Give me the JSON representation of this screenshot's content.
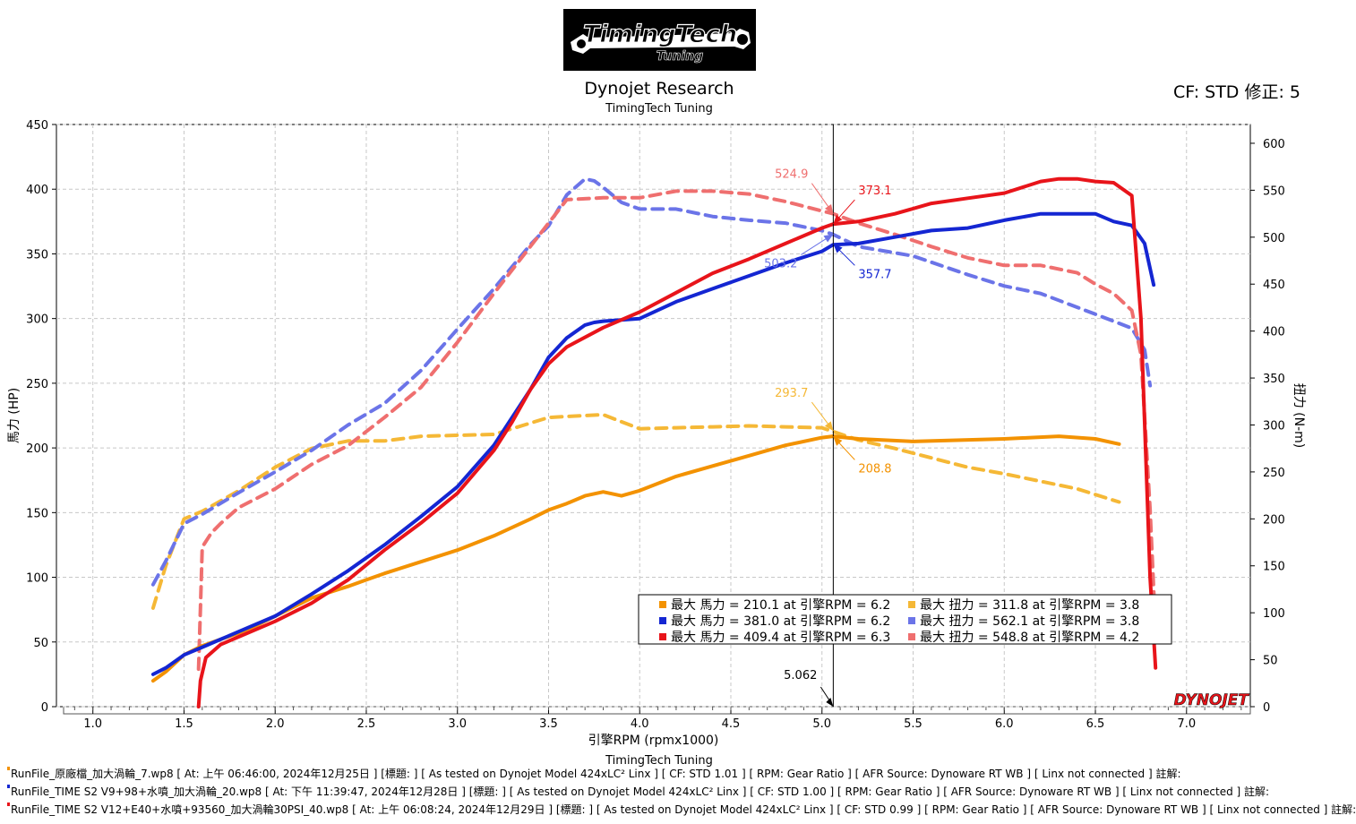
{
  "logo": {
    "line1": "TimingTech",
    "line2": "Tuning"
  },
  "header": {
    "title": "Dynojet Research",
    "subtitle": "TimingTech Tuning",
    "cf": "CF: STD 修正: 5"
  },
  "footer": {
    "subtitle": "TimingTech Tuning"
  },
  "colors": {
    "orange": "#f39200",
    "blue": "#1426d2",
    "red": "#e8141a",
    "orange_tq": "#f5b836",
    "blue_tq": "#6b74e8",
    "red_tq": "#ef6f6f"
  },
  "chart_data": {
    "type": "line",
    "xlabel": "引擎RPM (rpmx1000)",
    "ylabel_left": "馬力 (HP)",
    "ylabel_right": "扭力 (N-m)",
    "xlim": [
      0.8,
      7.35
    ],
    "ylim_left": [
      0,
      450
    ],
    "ylim_right": [
      0,
      620
    ],
    "x_ticks": [
      "1.0",
      "1.5",
      "2.0",
      "2.5",
      "3.0",
      "3.5",
      "4.0",
      "4.5",
      "5.0",
      "5.5",
      "6.0",
      "6.5",
      "7.0"
    ],
    "y_ticks_left": [
      "0",
      "50",
      "100",
      "150",
      "200",
      "250",
      "300",
      "350",
      "400",
      "450"
    ],
    "y_ticks_right": [
      "0",
      "50",
      "100",
      "150",
      "200",
      "250",
      "300",
      "350",
      "400",
      "450",
      "500",
      "550",
      "600"
    ],
    "cursor": {
      "x": 5.062,
      "label": "5.062"
    },
    "series": [
      {
        "name": "orange_hp",
        "axis": "left",
        "style": "solid",
        "color": "#f39200",
        "x": [
          1.33,
          1.4,
          1.5,
          1.6,
          1.7,
          1.8,
          1.9,
          2.0,
          2.2,
          2.4,
          2.5,
          2.6,
          2.8,
          3.0,
          3.2,
          3.4,
          3.5,
          3.6,
          3.7,
          3.8,
          3.9,
          4.0,
          4.2,
          4.4,
          4.6,
          4.8,
          5.0,
          5.06,
          5.2,
          5.5,
          6.0,
          6.3,
          6.5,
          6.63
        ],
        "y": [
          20,
          27,
          40,
          47,
          52,
          57,
          63,
          70,
          84,
          93,
          98,
          103,
          112,
          121,
          132,
          145,
          152,
          157,
          163,
          166,
          163,
          167,
          178,
          186,
          194,
          202,
          208,
          209,
          207,
          205,
          207,
          209,
          207,
          203
        ]
      },
      {
        "name": "blue_hp",
        "axis": "left",
        "style": "solid",
        "color": "#1426d2",
        "x": [
          1.33,
          1.4,
          1.5,
          1.6,
          1.7,
          1.8,
          2.0,
          2.2,
          2.4,
          2.6,
          2.8,
          3.0,
          3.2,
          3.4,
          3.5,
          3.6,
          3.7,
          3.75,
          3.8,
          4.0,
          4.2,
          4.4,
          4.6,
          4.8,
          5.0,
          5.06,
          5.2,
          5.4,
          5.6,
          5.8,
          6.0,
          6.2,
          6.5,
          6.6,
          6.7,
          6.77,
          6.82
        ],
        "y": [
          25,
          30,
          40,
          46,
          52,
          58,
          70,
          87,
          105,
          125,
          147,
          170,
          202,
          245,
          270,
          285,
          295,
          297,
          298,
          300,
          313,
          323,
          333,
          343,
          352,
          357,
          358,
          363,
          368,
          370,
          376,
          381,
          381,
          375,
          372,
          358,
          326
        ]
      },
      {
        "name": "red_hp",
        "axis": "left",
        "style": "solid",
        "color": "#e8141a",
        "x": [
          1.58,
          1.59,
          1.62,
          1.7,
          1.8,
          2.0,
          2.2,
          2.4,
          2.6,
          2.8,
          3.0,
          3.2,
          3.3,
          3.4,
          3.5,
          3.6,
          3.8,
          4.0,
          4.2,
          4.4,
          4.6,
          4.8,
          5.0,
          5.06,
          5.2,
          5.4,
          5.6,
          5.8,
          6.0,
          6.2,
          6.3,
          6.4,
          6.5,
          6.6,
          6.7,
          6.75,
          6.8,
          6.83
        ],
        "y": [
          0,
          20,
          38,
          48,
          54,
          66,
          80,
          98,
          121,
          142,
          165,
          198,
          220,
          245,
          265,
          278,
          293,
          305,
          320,
          335,
          346,
          358,
          370,
          373,
          375,
          381,
          389,
          393,
          397,
          406,
          408,
          408,
          406,
          405,
          395,
          300,
          100,
          30
        ]
      },
      {
        "name": "orange_tq",
        "axis": "right",
        "style": "dashed",
        "color": "#f5b836",
        "x": [
          1.33,
          1.4,
          1.5,
          1.6,
          1.8,
          2.0,
          2.2,
          2.4,
          2.6,
          2.8,
          3.0,
          3.2,
          3.4,
          3.5,
          3.6,
          3.8,
          4.0,
          4.2,
          4.4,
          4.6,
          4.8,
          5.0,
          5.06,
          5.2,
          5.4,
          5.6,
          5.8,
          6.0,
          6.2,
          6.4,
          6.63
        ],
        "y": [
          105,
          150,
          200,
          208,
          230,
          255,
          275,
          283,
          283,
          288,
          289,
          290,
          302,
          308,
          309,
          311,
          296,
          297,
          298,
          299,
          298,
          297,
          293,
          284,
          275,
          265,
          255,
          248,
          240,
          232,
          218
        ]
      },
      {
        "name": "blue_tq",
        "axis": "right",
        "style": "dashed",
        "color": "#6b74e8",
        "x": [
          1.33,
          1.4,
          1.5,
          1.6,
          1.8,
          2.0,
          2.2,
          2.4,
          2.6,
          2.8,
          3.0,
          3.2,
          3.4,
          3.5,
          3.6,
          3.7,
          3.75,
          3.8,
          3.9,
          4.0,
          4.2,
          4.4,
          4.6,
          4.8,
          5.0,
          5.06,
          5.2,
          5.5,
          5.8,
          6.0,
          6.2,
          6.5,
          6.7,
          6.77,
          6.8
        ],
        "y": [
          130,
          155,
          195,
          205,
          228,
          250,
          273,
          300,
          323,
          358,
          402,
          445,
          492,
          512,
          545,
          562,
          560,
          553,
          537,
          530,
          530,
          522,
          518,
          515,
          507,
          503,
          490,
          480,
          460,
          448,
          440,
          418,
          403,
          380,
          342
        ]
      },
      {
        "name": "red_tq",
        "axis": "right",
        "style": "dashed",
        "color": "#ef6f6f",
        "x": [
          1.58,
          1.59,
          1.6,
          1.65,
          1.7,
          1.8,
          2.0,
          2.2,
          2.4,
          2.6,
          2.8,
          3.0,
          3.2,
          3.4,
          3.5,
          3.6,
          3.8,
          4.0,
          4.2,
          4.4,
          4.6,
          4.8,
          5.0,
          5.06,
          5.2,
          5.4,
          5.6,
          5.8,
          6.0,
          6.2,
          6.4,
          6.5,
          6.6,
          6.7,
          6.75,
          6.8,
          6.83
        ],
        "y": [
          40,
          105,
          170,
          185,
          195,
          212,
          232,
          258,
          278,
          308,
          340,
          388,
          440,
          490,
          515,
          540,
          542,
          542,
          549,
          549,
          546,
          538,
          528,
          525,
          515,
          503,
          490,
          478,
          470,
          470,
          462,
          450,
          440,
          422,
          375,
          210,
          80
        ]
      }
    ],
    "annotations": [
      {
        "text": "524.9",
        "series": "red_tq",
        "x": 5.062,
        "y": 524.9
      },
      {
        "text": "373.1",
        "series": "red_hp",
        "x": 5.062,
        "y": 373.1
      },
      {
        "text": "503.2",
        "series": "blue_tq",
        "x": 5.062,
        "y": 503.2
      },
      {
        "text": "357.7",
        "series": "blue_hp",
        "x": 5.062,
        "y": 357.7
      },
      {
        "text": "293.7",
        "series": "orange_tq",
        "x": 5.062,
        "y": 293.7
      },
      {
        "text": "208.8",
        "series": "orange_hp",
        "x": 5.062,
        "y": 208.8
      }
    ],
    "legend": {
      "placement": "bottom-right",
      "entries": [
        {
          "text": "最大 馬力 = 210.1 at 引擎RPM = 6.2",
          "color": "#f39200"
        },
        {
          "text": "最大 扭力 = 311.8 at 引擎RPM = 3.8",
          "color": "#f5b836"
        },
        {
          "text": "最大 馬力 = 381.0 at 引擎RPM = 6.2",
          "color": "#1426d2"
        },
        {
          "text": "最大 扭力 = 562.1 at 引擎RPM = 3.8",
          "color": "#6b74e8"
        },
        {
          "text": "最大 馬力 = 409.4 at 引擎RPM = 6.3",
          "color": "#e8141a"
        },
        {
          "text": "最大 扭力 = 548.8 at 引擎RPM = 4.2",
          "color": "#ef6f6f"
        }
      ]
    },
    "watermark": "DYNOJET"
  },
  "runfiles": [
    {
      "text": "RunFile_原廠檔_加大渦輪_7.wp8 [ At: 上午 06:46:00, 2024年12月25日 ] [標題: ]  [ As tested on Dynojet Model 424xLC² Linx ] [ CF: STD 1.01 ] [ RPM: Gear Ratio ] [ AFR Source: Dynoware RT WB ] [ Linx not connected ] 註解:",
      "color": "#f39200"
    },
    {
      "text": "RunFile_TIME S2 V9+98+水噴_加大渦輪_20.wp8 [ At: 下午 11:39:47, 2024年12月28日 ] [標題: ]  [ As tested on Dynojet Model 424xLC² Linx ] [ CF: STD 1.00 ] [ RPM: Gear Ratio ] [ AFR Source: Dynoware RT WB ] [ Linx not connected ] 註解:",
      "color": "#1426d2"
    },
    {
      "text": "RunFile_TIME S2 V12+E40+水噴+93560_加大渦輪30PSI_40.wp8 [ At: 上午 06:08:24, 2024年12月29日 ] [標題: ]  [ As tested on Dynojet Model 424xLC² Linx ] [ CF: STD 0.99 ] [ RPM: Gear Ratio ] [ AFR Source: Dynoware RT WB ] [ Linx not connected ] 註解:",
      "color": "#e8141a"
    }
  ]
}
